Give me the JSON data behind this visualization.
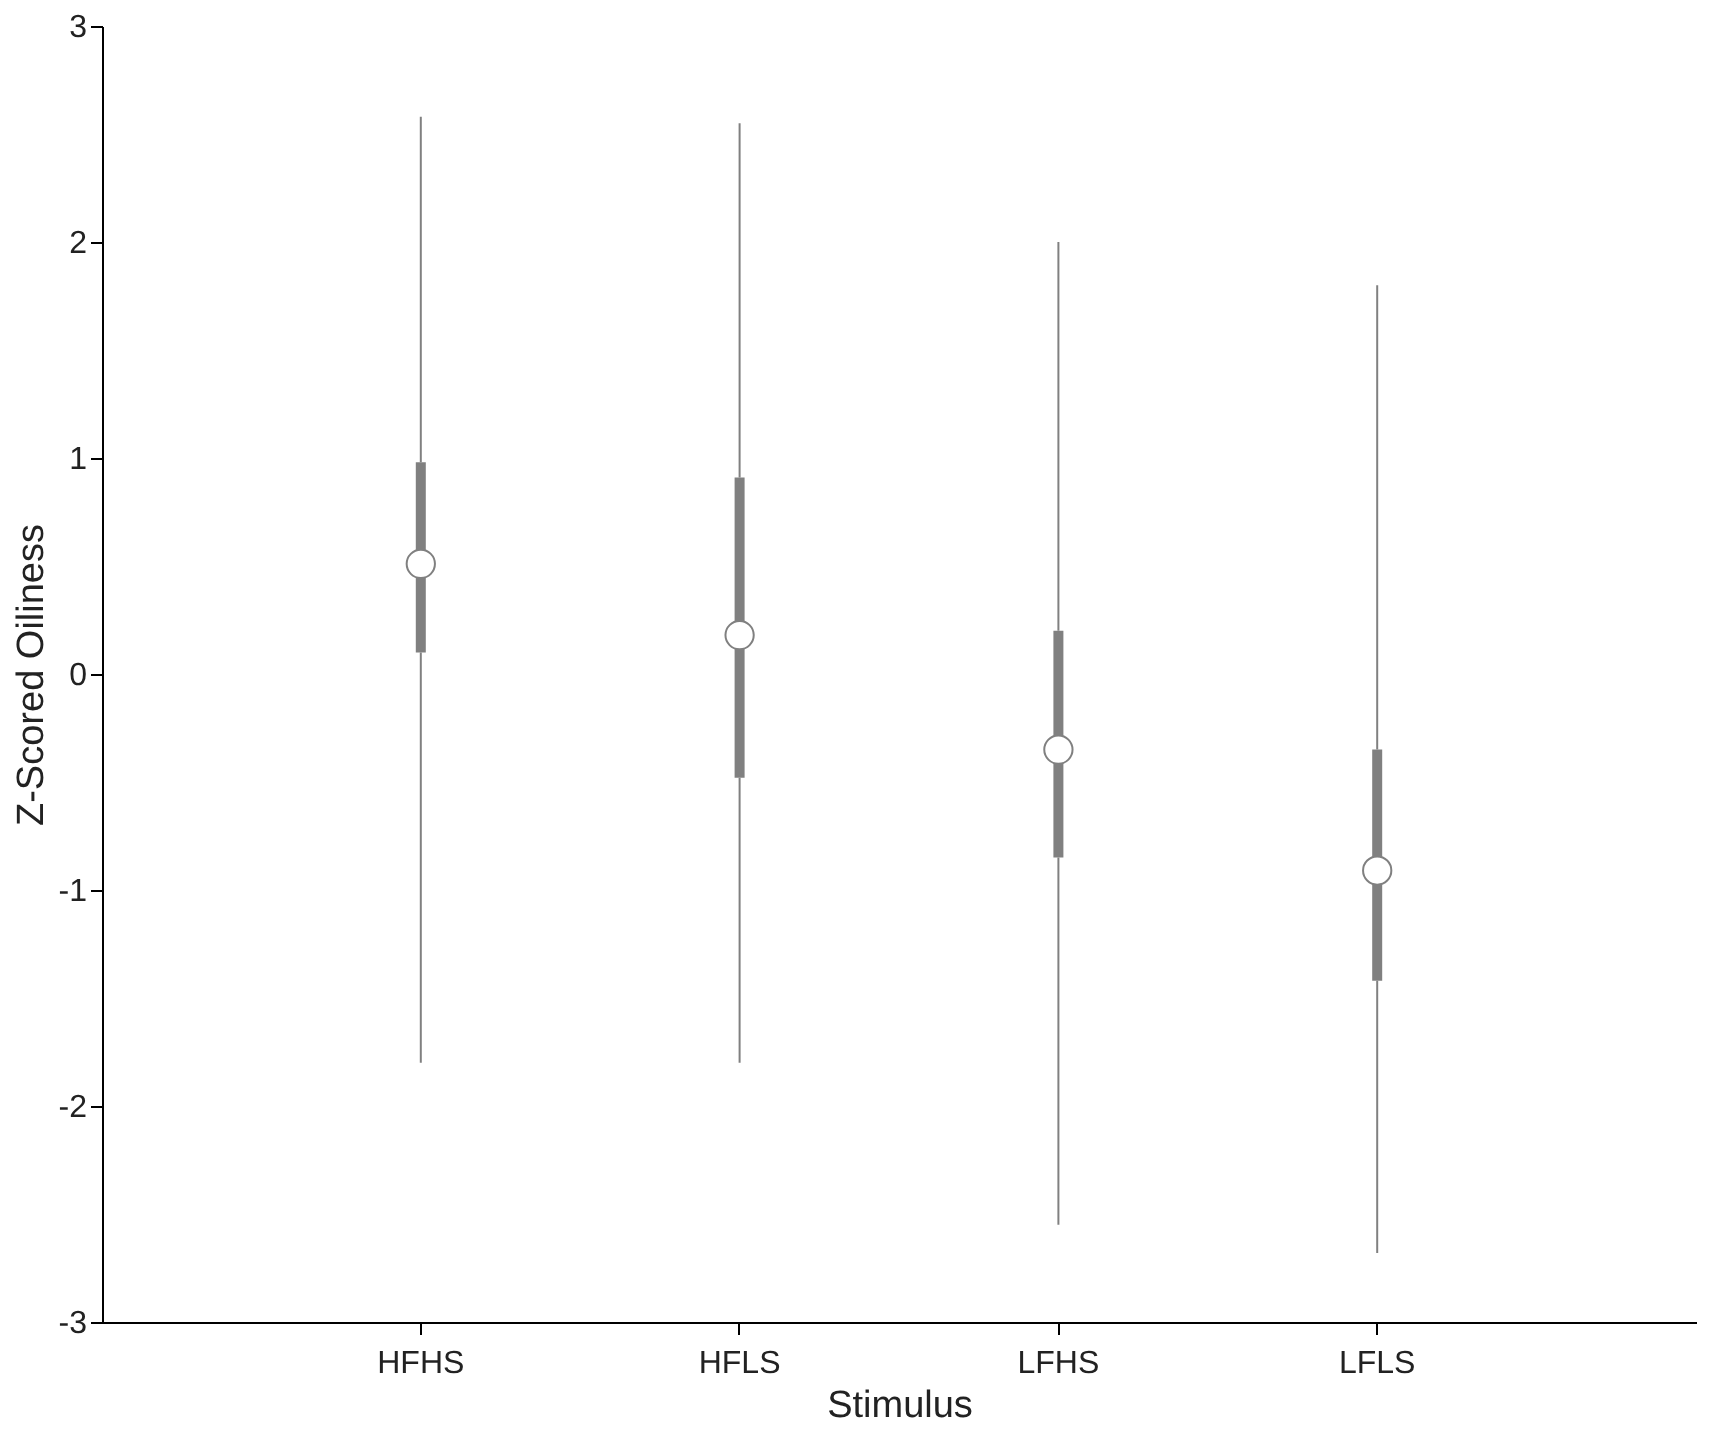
{
  "chart_data": {
    "type": "box",
    "xlabel": "Stimulus",
    "ylabel": "Z-Scored Oiliness",
    "categories": [
      "HFHS",
      "HFLS",
      "LFHS",
      "LFLS"
    ],
    "color": "#808080",
    "boxes": [
      {
        "low": -1.8,
        "q1": 0.1,
        "median": 0.51,
        "q3": 0.98,
        "high": 2.58
      },
      {
        "low": -1.8,
        "q1": -0.48,
        "median": 0.18,
        "q3": 0.91,
        "high": 2.55
      },
      {
        "low": -2.55,
        "q1": -0.85,
        "median": -0.35,
        "q3": 0.2,
        "high": 2.0
      },
      {
        "low": -2.68,
        "q1": -1.42,
        "median": -0.91,
        "q3": -0.35,
        "high": 1.8
      }
    ],
    "ylim": [
      -3,
      3
    ],
    "yticks": [
      -3,
      -2,
      -1,
      0,
      1,
      2,
      3
    ],
    "grid": false
  }
}
